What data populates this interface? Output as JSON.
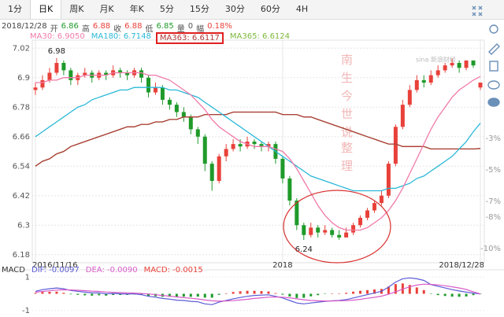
{
  "tabs": [
    "1分",
    "日K",
    "周K",
    "月K",
    "年K",
    "5分",
    "15分",
    "30分",
    "60分",
    "4H"
  ],
  "selected_tab": 1,
  "info": {
    "labels": [
      "开",
      "高",
      "收",
      "低",
      "量",
      "幅"
    ],
    "volume": 0,
    "change": "0.18%"
  },
  "chart_data": [
    {
      "type": "candlestick",
      "categories": [
        "2016/11/16",
        null,
        null,
        null,
        null,
        null,
        null,
        null,
        null,
        null,
        null,
        null,
        null,
        null,
        null,
        null,
        null,
        null,
        null,
        null,
        null,
        null,
        null,
        null,
        null,
        null,
        null,
        null,
        null,
        null,
        null,
        null,
        null,
        null,
        null,
        "2018",
        null,
        null,
        null,
        null,
        null,
        null,
        null,
        null,
        null,
        null,
        null,
        null,
        null,
        null,
        null,
        null,
        null,
        null,
        null,
        null,
        null,
        null,
        null,
        null,
        null,
        null,
        null,
        "2018/12/28"
      ],
      "open": [
        6.85,
        6.86,
        6.89,
        6.92,
        6.96,
        6.93,
        6.89,
        6.91,
        6.92,
        6.9,
        6.92,
        6.91,
        6.93,
        6.92,
        6.91,
        6.93,
        6.9,
        6.84,
        6.86,
        6.81,
        6.79,
        6.76,
        6.74,
        6.69,
        6.66,
        6.55,
        6.48,
        6.58,
        6.61,
        6.63,
        6.62,
        6.64,
        6.63,
        6.62,
        6.63,
        6.57,
        6.49,
        6.4,
        6.3,
        6.26,
        6.29,
        6.27,
        6.28,
        6.26,
        6.25,
        6.27,
        6.3,
        6.33,
        6.36,
        6.39,
        6.42,
        6.55,
        6.7,
        6.79,
        6.85,
        6.89,
        6.88,
        6.91,
        6.93,
        6.95,
        6.96,
        6.94,
        6.97,
        6.86
      ],
      "high": [
        6.88,
        6.91,
        6.94,
        6.98,
        6.97,
        6.94,
        6.92,
        6.94,
        6.93,
        6.93,
        6.93,
        6.95,
        6.94,
        6.93,
        6.94,
        6.94,
        6.91,
        6.88,
        6.87,
        6.82,
        6.8,
        6.78,
        6.75,
        6.7,
        6.67,
        6.56,
        6.59,
        6.63,
        6.65,
        6.65,
        6.66,
        6.65,
        6.64,
        6.64,
        6.64,
        6.58,
        6.5,
        6.41,
        6.31,
        6.31,
        6.3,
        6.3,
        6.29,
        6.28,
        6.29,
        6.31,
        6.34,
        6.37,
        6.4,
        6.44,
        6.56,
        6.71,
        6.81,
        6.87,
        6.91,
        6.91,
        6.93,
        6.95,
        6.96,
        6.9771,
        6.97,
        6.97,
        6.97,
        6.88
      ],
      "low": [
        6.83,
        6.85,
        6.88,
        6.91,
        6.91,
        6.87,
        6.87,
        6.9,
        6.88,
        6.89,
        6.89,
        6.9,
        6.9,
        6.89,
        6.9,
        6.88,
        6.82,
        6.83,
        6.79,
        6.77,
        6.74,
        6.72,
        6.67,
        6.63,
        6.52,
        6.44,
        6.47,
        6.56,
        6.6,
        6.6,
        6.61,
        6.61,
        6.6,
        6.6,
        6.55,
        6.47,
        6.38,
        6.28,
        6.24,
        6.25,
        6.25,
        6.26,
        6.25,
        6.2409,
        6.25,
        6.26,
        6.29,
        6.32,
        6.35,
        6.38,
        6.41,
        6.54,
        6.69,
        6.78,
        6.84,
        6.86,
        6.87,
        6.9,
        6.92,
        6.94,
        6.92,
        6.93,
        6.94,
        6.85
      ],
      "close": [
        6.86,
        6.89,
        6.92,
        6.96,
        6.93,
        6.89,
        6.91,
        6.92,
        6.9,
        6.92,
        6.91,
        6.93,
        6.92,
        6.91,
        6.93,
        6.9,
        6.84,
        6.86,
        6.81,
        6.79,
        6.76,
        6.74,
        6.69,
        6.66,
        6.55,
        6.48,
        6.58,
        6.61,
        6.63,
        6.62,
        6.64,
        6.63,
        6.62,
        6.63,
        6.57,
        6.49,
        6.4,
        6.3,
        6.26,
        6.29,
        6.27,
        6.28,
        6.26,
        6.25,
        6.27,
        6.3,
        6.33,
        6.36,
        6.39,
        6.42,
        6.55,
        6.7,
        6.79,
        6.85,
        6.89,
        6.88,
        6.91,
        6.93,
        6.95,
        6.96,
        6.94,
        6.97,
        6.95,
        6.88
      ],
      "up_color": "#e8413a",
      "down_color": "#1f9a2a",
      "series": [
        {
          "name": "MA30: 6.9050",
          "color": "#f07aa8",
          "values": [
            6.88,
            6.88,
            6.89,
            6.89,
            6.9,
            6.9,
            6.9,
            6.91,
            6.91,
            6.91,
            6.91,
            6.92,
            6.92,
            6.92,
            6.92,
            6.92,
            6.91,
            6.91,
            6.9,
            6.89,
            6.87,
            6.85,
            6.83,
            6.8,
            6.77,
            6.73,
            6.7,
            6.68,
            6.66,
            6.64,
            6.63,
            6.62,
            6.62,
            6.62,
            6.61,
            6.6,
            6.57,
            6.53,
            6.48,
            6.43,
            6.38,
            6.34,
            6.31,
            6.29,
            6.28,
            6.28,
            6.28,
            6.29,
            6.31,
            6.33,
            6.36,
            6.4,
            6.45,
            6.51,
            6.57,
            6.63,
            6.69,
            6.74,
            6.78,
            6.82,
            6.85,
            6.87,
            6.89,
            6.905
          ]
        },
        {
          "name": "MA180: 6.7148",
          "color": "#2ab8d8",
          "values": [
            6.66,
            6.68,
            6.7,
            6.72,
            6.74,
            6.76,
            6.78,
            6.79,
            6.81,
            6.82,
            6.83,
            6.84,
            6.85,
            6.85,
            6.86,
            6.86,
            6.86,
            6.86,
            6.86,
            6.85,
            6.85,
            6.84,
            6.83,
            6.82,
            6.8,
            6.78,
            6.76,
            6.74,
            6.72,
            6.7,
            6.68,
            6.66,
            6.64,
            6.62,
            6.6,
            6.58,
            6.56,
            6.54,
            6.52,
            6.5,
            6.49,
            6.48,
            6.47,
            6.46,
            6.45,
            6.44,
            6.44,
            6.44,
            6.44,
            6.44,
            6.45,
            6.45,
            6.46,
            6.47,
            6.49,
            6.5,
            6.52,
            6.54,
            6.56,
            6.58,
            6.61,
            6.64,
            6.68,
            6.7148
          ]
        },
        {
          "name": "MA363: 6.6117",
          "color": "#b03a3a",
          "highlight": true,
          "values": [
            6.54,
            6.56,
            6.57,
            6.59,
            6.6,
            6.62,
            6.63,
            6.64,
            6.65,
            6.66,
            6.67,
            6.68,
            6.69,
            6.7,
            6.7,
            6.71,
            6.71,
            6.72,
            6.72,
            6.73,
            6.73,
            6.74,
            6.74,
            6.74,
            6.75,
            6.75,
            6.75,
            6.75,
            6.76,
            6.76,
            6.76,
            6.76,
            6.76,
            6.76,
            6.76,
            6.75,
            6.75,
            6.75,
            6.74,
            6.74,
            6.73,
            6.72,
            6.71,
            6.7,
            6.69,
            6.68,
            6.67,
            6.66,
            6.65,
            6.64,
            6.63,
            6.63,
            6.62,
            6.62,
            6.62,
            6.62,
            6.61,
            6.61,
            6.61,
            6.61,
            6.61,
            6.61,
            6.61,
            6.6117
          ]
        },
        {
          "name": "MA365: 6.6124",
          "color": "#7cb83a",
          "values": [
            6.54,
            6.56,
            6.57,
            6.59,
            6.6,
            6.62,
            6.63,
            6.64,
            6.65,
            6.66,
            6.67,
            6.68,
            6.69,
            6.7,
            6.7,
            6.71,
            6.71,
            6.72,
            6.72,
            6.73,
            6.73,
            6.74,
            6.74,
            6.74,
            6.75,
            6.75,
            6.75,
            6.75,
            6.76,
            6.76,
            6.76,
            6.76,
            6.76,
            6.76,
            6.76,
            6.75,
            6.75,
            6.75,
            6.74,
            6.74,
            6.73,
            6.72,
            6.71,
            6.7,
            6.69,
            6.68,
            6.67,
            6.66,
            6.65,
            6.64,
            6.63,
            6.63,
            6.62,
            6.62,
            6.62,
            6.62,
            6.61,
            6.61,
            6.61,
            6.61,
            6.61,
            6.61,
            6.61,
            6.6124
          ]
        }
      ],
      "ylim": [
        6.16,
        7.04
      ],
      "yticks": [
        6.18,
        6.3,
        6.42,
        6.54,
        6.66,
        6.78,
        6.9,
        7.02
      ],
      "y2lim": [
        -10.7,
        3.05
      ],
      "y2ticks": [
        {
          "value": -3,
          "label": "-3%"
        },
        {
          "value": -5,
          "label": "-5%"
        },
        {
          "value": -7,
          "label": "-7%"
        },
        {
          "value": -8,
          "label": "-8%"
        },
        {
          "value": -10,
          "label": "-10%"
        }
      ],
      "grid": true,
      "annotations": [
        "南生今世说",
        "整理",
        "sina 新浪财经"
      ]
    },
    {
      "type": "macd",
      "title": "MACD",
      "series": [
        {
          "name": "DIF: -0.0097",
          "color": "#5b5bd6",
          "values": [
            0.15,
            0.25,
            0.3,
            0.35,
            0.3,
            0.2,
            0.15,
            0.1,
            0.05,
            0.05,
            0.0,
            0.02,
            0.0,
            -0.02,
            0.0,
            -0.05,
            -0.15,
            -0.2,
            -0.28,
            -0.32,
            -0.38,
            -0.4,
            -0.45,
            -0.48,
            -0.6,
            -0.65,
            -0.5,
            -0.4,
            -0.3,
            -0.22,
            -0.15,
            -0.1,
            -0.08,
            -0.06,
            -0.15,
            -0.25,
            -0.4,
            -0.55,
            -0.6,
            -0.55,
            -0.5,
            -0.45,
            -0.42,
            -0.4,
            -0.35,
            -0.25,
            -0.15,
            -0.05,
            0.05,
            0.15,
            0.4,
            0.7,
            0.9,
            0.95,
            0.9,
            0.8,
            0.55,
            0.45,
            0.35,
            0.25,
            0.17,
            0.1,
            0.04,
            -0.0097
          ]
        },
        {
          "name": "DEA: -0.0090",
          "color": "#d85cc8",
          "values": [
            0.1,
            0.14,
            0.18,
            0.22,
            0.24,
            0.23,
            0.21,
            0.19,
            0.16,
            0.14,
            0.11,
            0.09,
            0.07,
            0.05,
            0.04,
            0.02,
            -0.01,
            -0.05,
            -0.1,
            -0.14,
            -0.19,
            -0.23,
            -0.27,
            -0.31,
            -0.37,
            -0.42,
            -0.44,
            -0.43,
            -0.41,
            -0.37,
            -0.33,
            -0.28,
            -0.24,
            -0.2,
            -0.19,
            -0.2,
            -0.24,
            -0.3,
            -0.36,
            -0.4,
            -0.42,
            -0.43,
            -0.43,
            -0.42,
            -0.41,
            -0.38,
            -0.33,
            -0.27,
            -0.21,
            -0.14,
            -0.03,
            0.12,
            0.28,
            0.42,
            0.52,
            0.58,
            0.56,
            0.53,
            0.48,
            0.42,
            0.35,
            0.26,
            0.12,
            -0.009
          ]
        }
      ],
      "bars": {
        "name": "MACD: -0.0015",
        "color": "#e8413a",
        "up_color": "#e8413a",
        "down_color": "#1f9a2a",
        "values": [
          0.05,
          0.11,
          0.12,
          0.13,
          0.06,
          -0.03,
          -0.06,
          -0.09,
          -0.11,
          -0.09,
          -0.11,
          -0.07,
          -0.07,
          -0.07,
          -0.04,
          -0.07,
          -0.14,
          -0.15,
          -0.18,
          -0.18,
          -0.19,
          -0.17,
          -0.18,
          -0.17,
          -0.23,
          -0.23,
          -0.06,
          0.03,
          0.11,
          0.15,
          0.18,
          0.18,
          0.16,
          0.14,
          0.04,
          -0.05,
          -0.16,
          -0.25,
          -0.24,
          -0.15,
          -0.08,
          -0.02,
          0.01,
          0.02,
          0.06,
          0.13,
          0.18,
          0.22,
          0.26,
          0.29,
          0.43,
          0.58,
          0.62,
          0.53,
          0.38,
          0.22,
          -0.01,
          -0.08,
          -0.13,
          -0.17,
          -0.18,
          -0.16,
          -0.08,
          -0.0015
        ]
      },
      "ylim": [
        -1.2,
        1.2
      ],
      "yticks": [
        -1,
        1
      ]
    }
  ]
}
